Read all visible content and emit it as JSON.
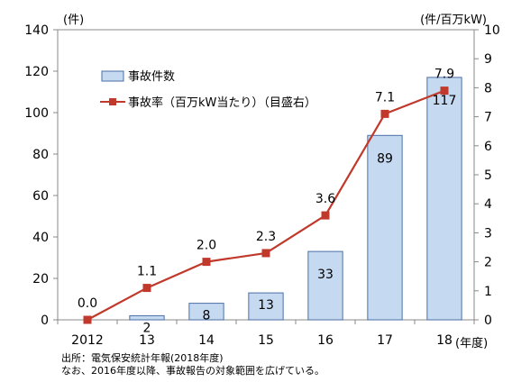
{
  "chart_data": {
    "type": "bar+line",
    "categories": [
      "2012",
      "13",
      "14",
      "15",
      "16",
      "17",
      "18"
    ],
    "xlabel": "(年度)",
    "ylabel_left": "(件)",
    "ylabel_right": "(件/百万kW)",
    "ylim_left": [
      0,
      140
    ],
    "yticks_left": [
      "0",
      "20",
      "40",
      "60",
      "80",
      "100",
      "120",
      "140"
    ],
    "ylim_right": [
      0,
      10
    ],
    "yticks_right": [
      "0",
      "1",
      "2",
      "3",
      "4",
      "5",
      "6",
      "7",
      "8",
      "9",
      "10"
    ],
    "grid": false,
    "legend_position": "top-left",
    "series": [
      {
        "name": "事故件数",
        "type": "bar",
        "axis": "left",
        "values": [
          0,
          2,
          8,
          13,
          33,
          89,
          117
        ],
        "labels": [
          "",
          "2",
          "8",
          "13",
          "33",
          "89",
          "117"
        ],
        "color": "#c5d9f1",
        "edge_color": "#4a6fa5"
      },
      {
        "name": "事故率（百万kW当たり）（目盛右）",
        "type": "line",
        "axis": "right",
        "values": [
          0.0,
          1.1,
          2.0,
          2.3,
          3.6,
          7.1,
          7.9
        ],
        "labels": [
          "0.0",
          "1.1",
          "2.0",
          "2.3",
          "3.6",
          "7.1",
          "7.9"
        ],
        "color": "#c0392b"
      }
    ]
  },
  "notes": {
    "source": "出所：電気保安統計年報(2018年度)",
    "remark": "なお、2016年度以降、事故報告の対象範囲を広げている。"
  }
}
